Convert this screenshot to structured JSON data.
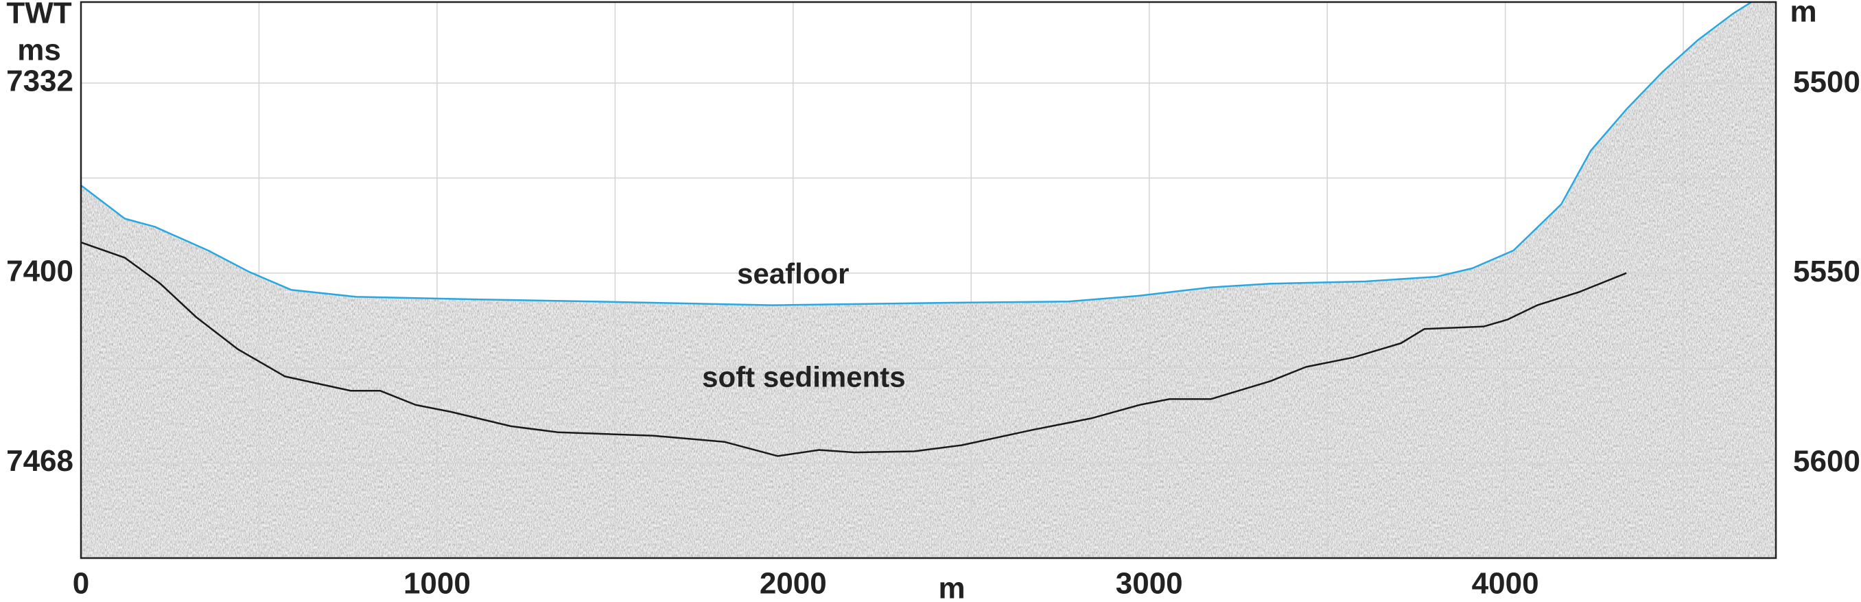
{
  "chart_data": {
    "type": "line",
    "y_label": "TWT",
    "y_unit": "ms",
    "y2_label": "m",
    "x_label": "m",
    "annotations": [
      {
        "text": "seafloor",
        "x": 2000,
        "y": 7401
      },
      {
        "text": "soft sediments",
        "x": 2030,
        "y": 7438
      }
    ],
    "xlim": [
      0,
      4760
    ],
    "xticks": [
      0,
      1000,
      2000,
      3000,
      4000
    ],
    "minor_xticks": [
      500,
      1500,
      2500,
      3500,
      4500
    ],
    "ylim": [
      7303,
      7502
    ],
    "yticks": [
      7332,
      7400,
      7468
    ],
    "minor_yticks": [
      7366,
      7434
    ],
    "y2lim": [
      5478.4,
      5625
    ],
    "y2ticks": [
      5500,
      5550,
      5600
    ],
    "grid": true,
    "y_reversed": true,
    "series": [
      {
        "color": "#29a8e0",
        "x": [
          0,
          123,
          207,
          357,
          473,
          590,
          773,
          1107,
          1440,
          1940,
          2440,
          2773,
          2973,
          3173,
          3340,
          3607,
          3807,
          3907,
          4023,
          4157,
          4240,
          4340,
          4440,
          4540,
          4640,
          4690
        ],
        "values": [
          7368.6,
          7380.5,
          7383.4,
          7391.9,
          7399.6,
          7406.0,
          7408.5,
          7409.4,
          7410.2,
          7411.5,
          7410.6,
          7410.2,
          7408.1,
          7405.1,
          7403.8,
          7403.0,
          7401.3,
          7398.3,
          7391.9,
          7375.4,
          7356.2,
          7341.4,
          7328.2,
          7316.7,
          7307.1,
          7303.1
        ]
      },
      {
        "color": "#1a1a1a",
        "x": [
          0,
          123,
          223,
          323,
          440,
          573,
          757,
          840,
          940,
          1040,
          1207,
          1340,
          1607,
          1807,
          1957,
          2073,
          2173,
          2340,
          2473,
          2673,
          2840,
          2973,
          3057,
          3173,
          3340,
          3440,
          3573,
          3707,
          3773,
          3940,
          4007,
          4090,
          4207,
          4340
        ],
        "values": [
          7389.0,
          7394.5,
          7403.8,
          7415.7,
          7427.2,
          7437.0,
          7442.1,
          7442.1,
          7447.2,
          7449.7,
          7454.8,
          7457.0,
          7458.2,
          7460.4,
          7465.5,
          7463.3,
          7464.2,
          7463.8,
          7461.6,
          7456.1,
          7451.9,
          7447.2,
          7445.1,
          7445.1,
          7438.7,
          7433.6,
          7430.2,
          7425.1,
          7420.0,
          7419.1,
          7416.6,
          7411.5,
          7406.8,
          7400.0
        ]
      }
    ]
  }
}
